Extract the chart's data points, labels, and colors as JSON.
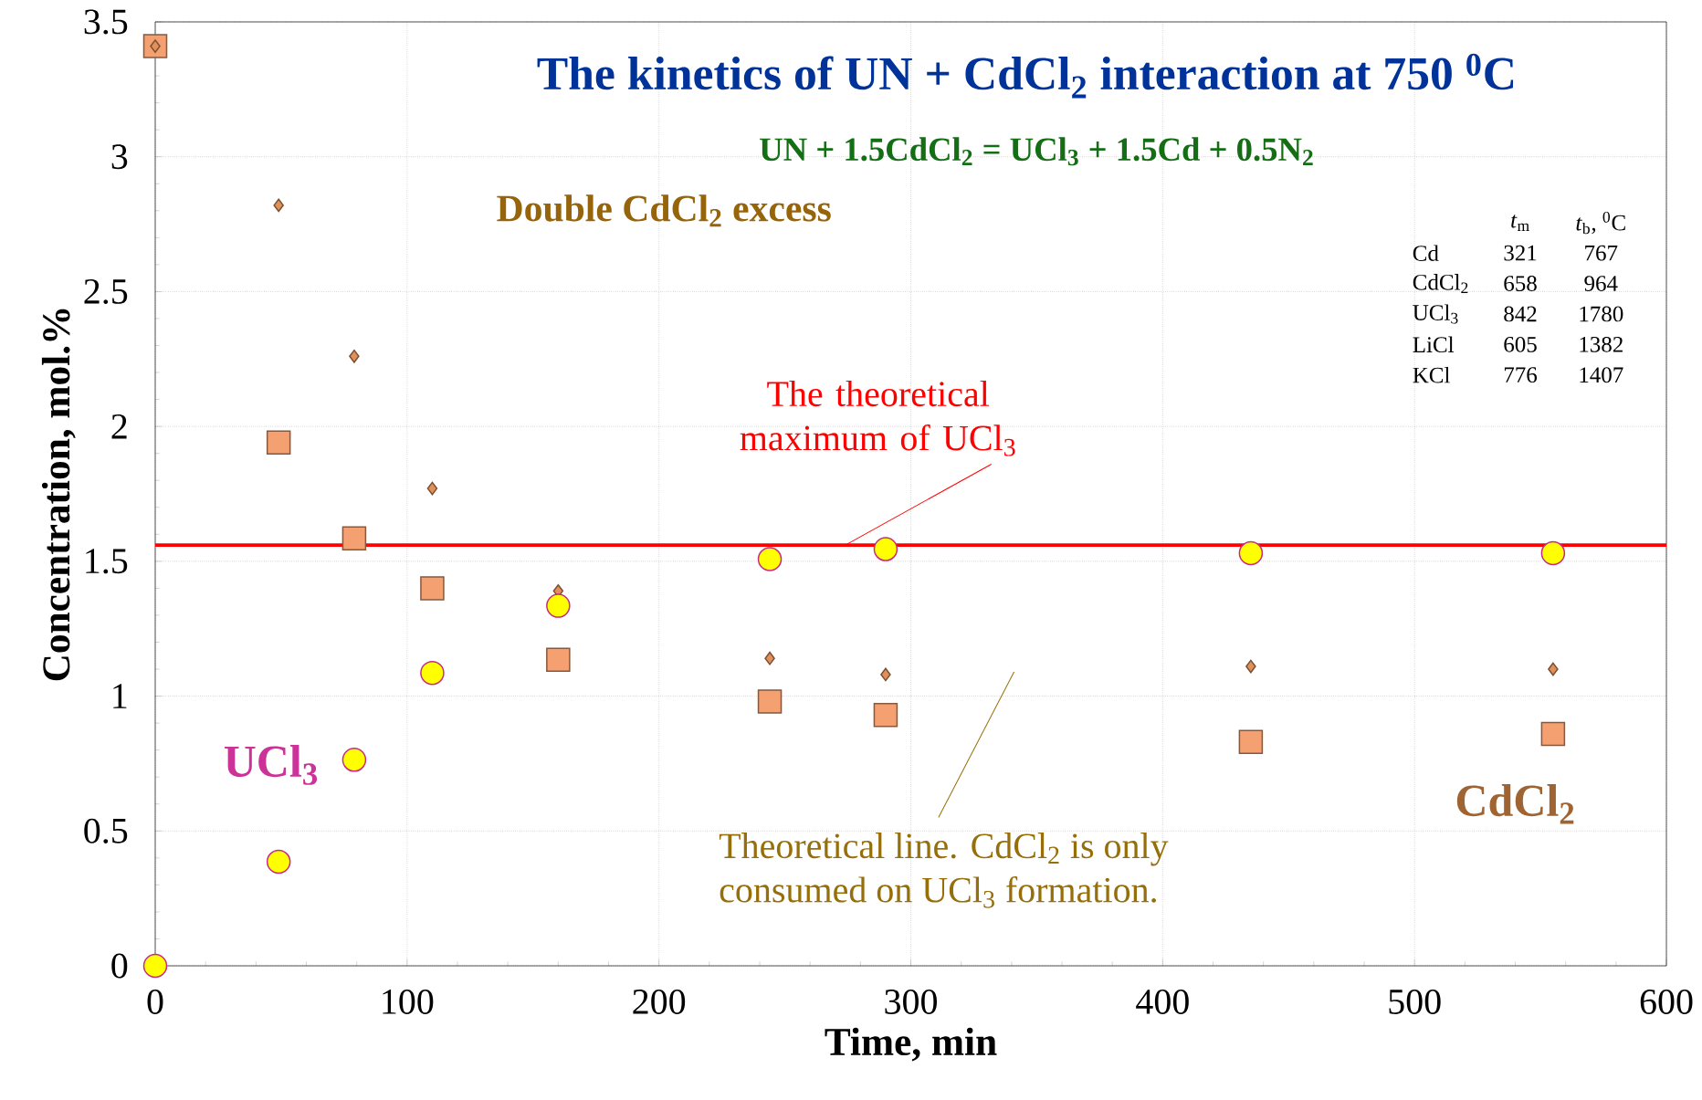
{
  "chart_data": {
    "type": "scatter",
    "title": "The kinetics of UN + CdCl$_{2}$ interaction at 750 $^{0}$C",
    "subtitle": "UN + 1.5CdCl$_{2}$ = UCl$_{3}$ + 1.5Cd + 0.5N$_{2}$",
    "xlabel": "Time, min",
    "ylabel": "Concentration,  mol.%",
    "xlim": [
      0,
      600
    ],
    "ylim": [
      0,
      3.5
    ],
    "xticks": [
      0,
      100,
      200,
      300,
      400,
      500,
      600
    ],
    "yticks": [
      0,
      0.5,
      1,
      1.5,
      2,
      2.5,
      3,
      3.5
    ],
    "grid": true,
    "x": [
      0,
      49,
      79,
      110,
      160,
      244,
      290,
      435,
      555
    ],
    "series": [
      {
        "name": "Theoretical line. CdCl$_{2}$ is only consumed on UCl$_{3}$ formation.",
        "color": "#e0905a",
        "marker": "diamond",
        "values": [
          3.41,
          2.82,
          2.26,
          1.77,
          1.39,
          1.14,
          1.08,
          1.11,
          1.1
        ]
      },
      {
        "name": "CdCl$_{2}$",
        "color": "#f4a070",
        "marker": "square",
        "values": [
          3.41,
          1.94,
          1.585,
          1.4,
          1.135,
          0.98,
          0.93,
          0.83,
          0.86
        ]
      },
      {
        "name": "UCl$_{3}$",
        "color": "#ffff00",
        "marker": "circle",
        "values": [
          0,
          0.386,
          0.764,
          1.086,
          1.335,
          1.508,
          1.545,
          1.53,
          1.53
        ]
      }
    ],
    "ref_lines": [
      {
        "axis": "y",
        "value": 1.56,
        "label": "The theoretical maximum of UCl$_{3}$",
        "color": "#ff0000"
      }
    ],
    "annotations": [
      "Double CdCl$_{2}$ excess",
      "*t*$_{m}$",
      "*t*$_{b}$, $^{0}$C",
      "Cd",
      "321",
      "767",
      "CdCl$_{2}$",
      "658",
      "964",
      "UCl$_{3}$",
      "842",
      "1780",
      "LiCl",
      "605",
      "1382",
      "KCl",
      "776",
      "1407"
    ]
  }
}
